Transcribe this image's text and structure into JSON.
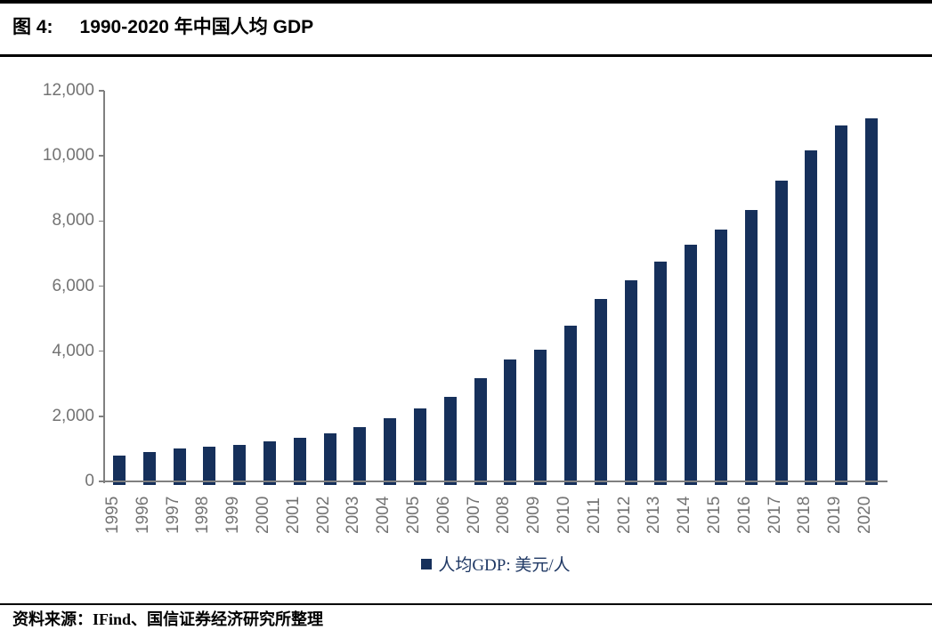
{
  "figure": {
    "label": "图 4:",
    "title": "1990-2020 年中国人均 GDP"
  },
  "chart_data": {
    "type": "bar",
    "title": "图 4: 1990-2020 年中国人均 GDP",
    "categories": [
      "1995",
      "1996",
      "1997",
      "1998",
      "1999",
      "2000",
      "2001",
      "2002",
      "2003",
      "2004",
      "2005",
      "2006",
      "2007",
      "2008",
      "2009",
      "2010",
      "2011",
      "2012",
      "2013",
      "2014",
      "2015",
      "2016",
      "2017",
      "2018",
      "2019",
      "2020"
    ],
    "values": [
      789,
      914,
      1005,
      1064,
      1121,
      1231,
      1351,
      1474,
      1654,
      1936,
      2228,
      2595,
      3177,
      3736,
      4059,
      4776,
      5597,
      6166,
      6744,
      7273,
      7740,
      8339,
      9239,
      10160,
      10923,
      11163
    ],
    "series_name": "人均GDP: 美元/人",
    "xlabel": "",
    "ylabel": "",
    "ylim": [
      0,
      12000
    ],
    "ytick_step": 2000,
    "ytick_labels": [
      "0",
      "2,000",
      "4,000",
      "6,000",
      "8,000",
      "10,000",
      "12,000"
    ],
    "grid": false,
    "legend_position": "bottom",
    "bar_color": "#16305B",
    "axis_color": "#808080",
    "tick_label_color": "#737373"
  },
  "legend": {
    "label": "人均GDP: 美元/人"
  },
  "footer": {
    "source": "资料来源：IFind、国信证券经济研究所整理"
  }
}
